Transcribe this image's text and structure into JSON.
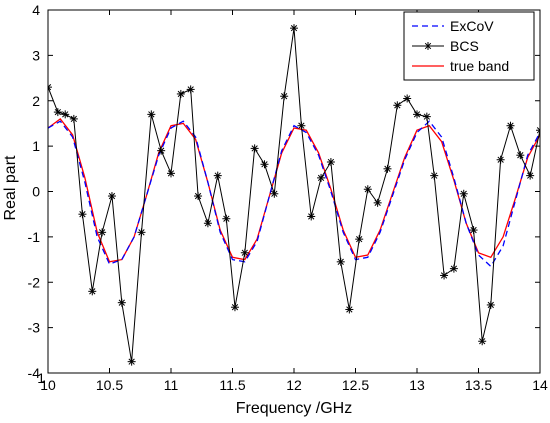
{
  "chart_data": {
    "type": "line",
    "title": "",
    "xlabel": "Frequency /GHz",
    "ylabel": "Real part",
    "xlim": [
      10,
      14
    ],
    "ylim": [
      -4,
      4
    ],
    "x_ticks": [
      10,
      10.5,
      11,
      11.5,
      12,
      12.5,
      13,
      13.5,
      14
    ],
    "x_tick_labels": [
      "10",
      "10.5",
      "11",
      "11.5",
      "12",
      "12.5",
      "13",
      "13.5",
      "14"
    ],
    "x_tick_prefix": "1",
    "y_ticks": [
      4,
      3,
      2,
      1,
      0,
      -1,
      -2,
      -3,
      -4
    ],
    "y_tick_labels": [
      "4",
      "3",
      "2",
      "1",
      "0",
      "-1",
      "-2",
      "-3",
      "-4"
    ],
    "grid": false,
    "legend_position": "top-right",
    "series": [
      {
        "name": "ExCoV",
        "color": "#0000ff",
        "line": "dashed",
        "x": [
          10,
          10.1,
          10.2,
          10.3,
          10.4,
          10.5,
          10.6,
          10.7,
          10.8,
          10.9,
          11.0,
          11.1,
          11.2,
          11.3,
          11.4,
          11.5,
          11.6,
          11.7,
          11.8,
          11.9,
          12.0,
          12.1,
          12.2,
          12.3,
          12.4,
          12.5,
          12.6,
          12.7,
          12.8,
          12.9,
          13.0,
          13.1,
          13.2,
          13.3,
          13.4,
          13.5,
          13.6,
          13.7,
          13.8,
          13.9,
          14.0
        ],
        "y": [
          1.4,
          1.55,
          1.2,
          0.2,
          -1.0,
          -1.6,
          -1.5,
          -1.0,
          -0.1,
          0.8,
          1.4,
          1.55,
          1.2,
          0.2,
          -0.9,
          -1.5,
          -1.55,
          -1.1,
          -0.1,
          0.9,
          1.45,
          1.3,
          0.8,
          0.0,
          -0.9,
          -1.5,
          -1.45,
          -0.9,
          -0.1,
          0.7,
          1.3,
          1.55,
          1.2,
          0.3,
          -0.7,
          -1.4,
          -1.65,
          -1.2,
          -0.2,
          0.8,
          1.3
        ]
      },
      {
        "name": "BCS",
        "color": "#000000",
        "line": "solid",
        "marker": "asterisk",
        "x": [
          10.0,
          10.08,
          10.14,
          10.21,
          10.28,
          10.36,
          10.44,
          10.52,
          10.6,
          10.68,
          10.76,
          10.84,
          10.92,
          11.0,
          11.08,
          11.16,
          11.22,
          11.3,
          11.38,
          11.45,
          11.52,
          11.6,
          11.68,
          11.76,
          11.84,
          11.92,
          12.0,
          12.06,
          12.14,
          12.22,
          12.3,
          12.38,
          12.45,
          12.53,
          12.6,
          12.68,
          12.76,
          12.84,
          12.92,
          13.0,
          13.08,
          13.14,
          13.22,
          13.3,
          13.38,
          13.46,
          13.53,
          13.6,
          13.68,
          13.76,
          13.84,
          13.92,
          14.0
        ],
        "y": [
          2.3,
          1.75,
          1.7,
          1.6,
          -0.5,
          -2.2,
          -0.9,
          -0.1,
          -2.45,
          -3.75,
          -0.9,
          1.7,
          0.9,
          0.4,
          2.15,
          2.25,
          -0.1,
          -0.7,
          0.35,
          -0.6,
          -2.55,
          -1.35,
          0.95,
          0.6,
          -0.05,
          2.1,
          3.6,
          1.45,
          -0.55,
          0.3,
          0.65,
          -1.55,
          -2.6,
          -1.05,
          0.05,
          -0.25,
          0.5,
          1.9,
          2.05,
          1.7,
          1.65,
          0.35,
          -1.85,
          -1.7,
          -0.05,
          -0.85,
          -3.3,
          -2.5,
          0.7,
          1.45,
          0.8,
          0.35,
          1.35
        ]
      },
      {
        "name": "true band",
        "color": "#ff0000",
        "line": "solid",
        "x": [
          10,
          10.1,
          10.2,
          10.3,
          10.4,
          10.5,
          10.6,
          10.7,
          10.8,
          10.9,
          11.0,
          11.1,
          11.2,
          11.3,
          11.4,
          11.5,
          11.6,
          11.7,
          11.8,
          11.9,
          12.0,
          12.1,
          12.2,
          12.3,
          12.4,
          12.5,
          12.6,
          12.7,
          12.8,
          12.9,
          13.0,
          13.1,
          13.2,
          13.3,
          13.4,
          13.5,
          13.6,
          13.7,
          13.8,
          13.9,
          14.0
        ],
        "y": [
          1.4,
          1.6,
          1.25,
          0.3,
          -0.9,
          -1.55,
          -1.5,
          -1.0,
          -0.1,
          0.85,
          1.45,
          1.5,
          1.15,
          0.2,
          -0.85,
          -1.45,
          -1.5,
          -1.05,
          -0.1,
          0.85,
          1.4,
          1.35,
          0.85,
          0.05,
          -0.85,
          -1.45,
          -1.4,
          -0.85,
          -0.05,
          0.75,
          1.35,
          1.45,
          1.1,
          0.25,
          -0.7,
          -1.35,
          -1.45,
          -1.0,
          -0.15,
          0.75,
          1.25
        ]
      }
    ]
  }
}
